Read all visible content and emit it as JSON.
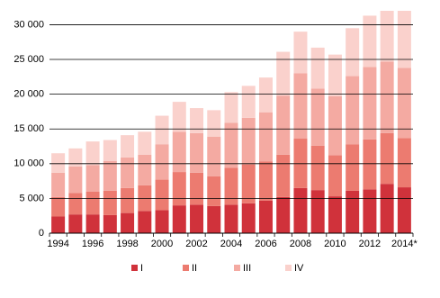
{
  "chart_data": {
    "type": "stacked_bar",
    "categories": [
      "1994",
      null,
      "1996",
      null,
      "1998",
      null,
      "2000",
      null,
      "2002",
      null,
      "2004",
      null,
      "2006",
      null,
      "2008",
      null,
      "2010",
      null,
      "2012",
      null,
      "2014*"
    ],
    "series": [
      {
        "name": "I",
        "color": "#d0323b",
        "values": [
          2400,
          2700,
          2700,
          2600,
          2900,
          3200,
          3300,
          4000,
          4100,
          3900,
          4100,
          4300,
          4700,
          5200,
          6500,
          6200,
          5300,
          6100,
          6300,
          7100,
          6600
        ]
      },
      {
        "name": "II",
        "color": "#ec7b70",
        "values": [
          2800,
          3100,
          3300,
          3500,
          3600,
          3700,
          4400,
          4800,
          4600,
          4300,
          5300,
          5600,
          5600,
          6100,
          7100,
          6400,
          5900,
          6700,
          7200,
          7300,
          7100
        ]
      },
      {
        "name": "III",
        "color": "#f4aaa2",
        "values": [
          3500,
          3800,
          3800,
          4300,
          4400,
          4400,
          5100,
          5800,
          5700,
          5700,
          6500,
          6700,
          7100,
          8500,
          9400,
          8200,
          8500,
          9800,
          10400,
          10300,
          10100
        ]
      },
      {
        "name": "IV",
        "color": "#fad1cc",
        "values": [
          2800,
          2600,
          3400,
          3000,
          3200,
          3300,
          4100,
          4300,
          3600,
          3800,
          4400,
          4600,
          5000,
          6300,
          6000,
          5900,
          6000,
          6900,
          7400,
          7300,
          8200
        ]
      }
    ],
    "ylim": [
      0,
      32000
    ],
    "yticks": [
      0,
      {
        "value": 5000,
        "label": "5 000"
      },
      {
        "value": 10000,
        "label": "10 000"
      },
      {
        "value": 15000,
        "label": "15 000"
      },
      {
        "value": 20000,
        "label": "20 000"
      },
      {
        "value": 25000,
        "label": "25 000"
      },
      {
        "value": 30000,
        "label": "30 000"
      }
    ],
    "grid": true,
    "legend": "bottom"
  }
}
